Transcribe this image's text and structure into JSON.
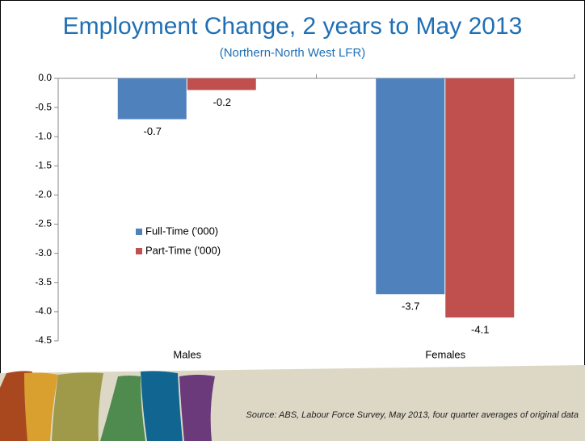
{
  "chart_data": {
    "type": "bar",
    "title": "Employment Change, 2 years to May 2013",
    "subtitle": "(Northern-North West LFR)",
    "categories": [
      "Males",
      "Females"
    ],
    "series": [
      {
        "name": "Full-Time ('000)",
        "color": "#4f81bd",
        "values": [
          -0.7,
          -3.7
        ]
      },
      {
        "name": "Part-Time ('000)",
        "color": "#c0504d",
        "values": [
          -0.2,
          -4.1
        ]
      }
    ],
    "ylim": [
      -4.5,
      0
    ],
    "yticks": [
      {
        "value": 0,
        "label": "0.0"
      },
      -0.5,
      {
        "value": -1,
        "label": "-1.0"
      },
      -1.5,
      {
        "value": -2,
        "label": "-2.0"
      },
      -2.5,
      {
        "value": -3,
        "label": "-3.0"
      },
      -3.5,
      {
        "value": -4,
        "label": "-4.0"
      },
      -4.5
    ],
    "grid": false,
    "legend": "left",
    "source": "Source: ABS, Labour Force Survey, May 2013, four quarter averages of original data"
  }
}
